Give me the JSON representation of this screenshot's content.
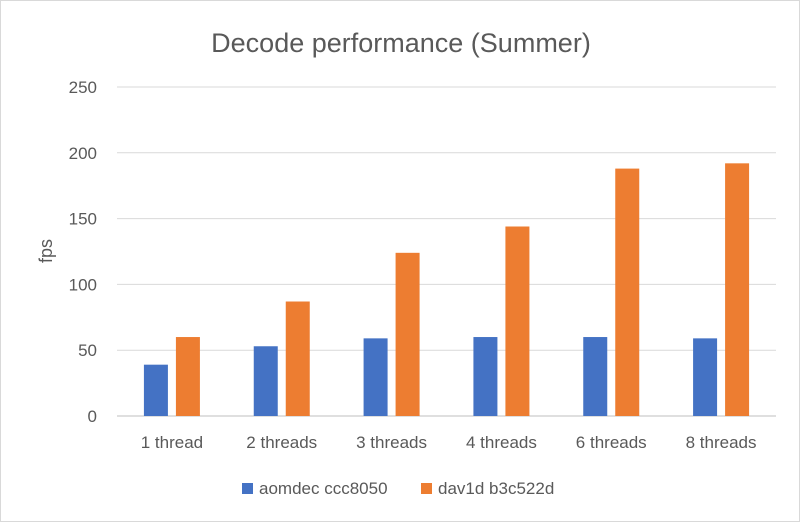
{
  "chart_data": {
    "type": "bar",
    "title": "Decode performance (Summer)",
    "ylabel": "fps",
    "xlabel": "",
    "ylim": [
      0,
      250
    ],
    "yticks": [
      0,
      50,
      100,
      150,
      200,
      250
    ],
    "grid": true,
    "legend_position": "bottom",
    "categories": [
      "1 thread",
      "2 threads",
      "3 threads",
      "4 threads",
      "6 threads",
      "8 threads"
    ],
    "series": [
      {
        "name": "aomdec ccc8050",
        "color": "#4472c4",
        "values": [
          39,
          53,
          59,
          60,
          60,
          59
        ]
      },
      {
        "name": "dav1d b3c522d",
        "color": "#ed7d31",
        "values": [
          60,
          87,
          124,
          144,
          188,
          192
        ]
      }
    ]
  }
}
